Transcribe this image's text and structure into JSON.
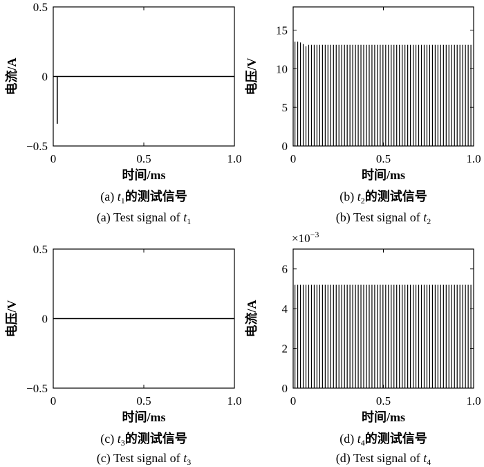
{
  "chart_data": [
    {
      "id": "a",
      "type": "line",
      "shape": "spike",
      "ylabel": "电流/A",
      "xlabel": "时间/ms",
      "ylim": [
        -0.5,
        0.5
      ],
      "xlim": [
        0,
        1.0
      ],
      "yticks": [
        "−0.5",
        "0",
        "0.5"
      ],
      "ytick_values": [
        -0.5,
        0,
        0.5
      ],
      "xticks": [
        "0",
        "0.5",
        "1.0"
      ],
      "xtick_values": [
        0,
        0.5,
        1.0
      ],
      "spike": {
        "x": 0.022,
        "y": -0.34
      },
      "baseline": 0,
      "caption_cn": {
        "prefix": "(a) ",
        "var": "t",
        "sub": "1",
        "suffix": "的测试信号"
      },
      "caption_en": {
        "prefix": "(a) Test signal of ",
        "var": "t",
        "sub": "1"
      }
    },
    {
      "id": "b",
      "type": "bar",
      "shape": "pulse-train",
      "ylabel": "电压/V",
      "xlabel": "时间/ms",
      "ylim": [
        0,
        18
      ],
      "xlim": [
        0,
        1.0
      ],
      "yticks": [
        "0",
        "5",
        "10",
        "15"
      ],
      "ytick_values": [
        0,
        5,
        10,
        15
      ],
      "xticks": [
        "0",
        "0.5",
        "1.0"
      ],
      "xtick_values": [
        0,
        0.5,
        1.0
      ],
      "pulse_count": 65,
      "pulse_x_start": 0.01,
      "pulse_x_end": 0.985,
      "initial_peaks": [
        13.5,
        13.5,
        13.4,
        13.2,
        12.9
      ],
      "peak": 13.1,
      "caption_cn": {
        "prefix": "(b) ",
        "var": "t",
        "sub": "2",
        "suffix": "的测试信号"
      },
      "caption_en": {
        "prefix": "(b) Test signal of ",
        "var": "t",
        "sub": "2"
      }
    },
    {
      "id": "c",
      "type": "line",
      "shape": "flat",
      "ylabel": "电压/V",
      "xlabel": "时间/ms",
      "ylim": [
        -0.5,
        0.5
      ],
      "xlim": [
        0,
        1.0
      ],
      "yticks": [
        "−0.5",
        "0",
        "0.5"
      ],
      "ytick_values": [
        -0.5,
        0,
        0.5
      ],
      "xticks": [
        "0",
        "0.5",
        "1.0"
      ],
      "xtick_values": [
        0,
        0.5,
        1.0
      ],
      "baseline": 0,
      "caption_cn": {
        "prefix": "(c) ",
        "var": "t",
        "sub": "3",
        "suffix": "的测试信号"
      },
      "caption_en": {
        "prefix": "(c) Test signal of ",
        "var": "t",
        "sub": "3"
      }
    },
    {
      "id": "d",
      "type": "bar",
      "shape": "pulse-train",
      "ylabel": "电流/A",
      "xlabel": "时间/ms",
      "ylim": [
        0,
        7
      ],
      "xlim": [
        0,
        1.0
      ],
      "yticks": [
        "0",
        "2",
        "4",
        "6"
      ],
      "ytick_values": [
        0,
        2,
        4,
        6
      ],
      "xticks": [
        "0",
        "0.5",
        "1.0"
      ],
      "xtick_values": [
        0,
        0.5,
        1.0
      ],
      "y_multiplier": "×10",
      "y_multiplier_exp": "−3",
      "pulse_count": 65,
      "pulse_x_start": 0.01,
      "pulse_x_end": 0.985,
      "peak": 5.2,
      "caption_cn": {
        "prefix": "(d) ",
        "var": "t",
        "sub": "4",
        "suffix": "的测试信号"
      },
      "caption_en": {
        "prefix": "(d) Test signal of ",
        "var": "t",
        "sub": "4"
      }
    }
  ]
}
